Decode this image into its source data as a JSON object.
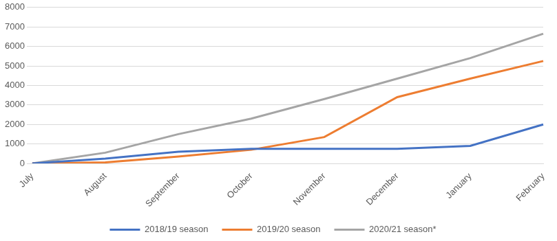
{
  "chart_data": {
    "type": "line",
    "categories": [
      "July",
      "August",
      "September",
      "October",
      "November",
      "December",
      "January",
      "February"
    ],
    "series": [
      {
        "name": "2018/19 season",
        "color": "#4472c4",
        "values": [
          0,
          250,
          600,
          750,
          750,
          750,
          900,
          2000
        ]
      },
      {
        "name": "2019/20 season",
        "color": "#ed7d31",
        "values": [
          0,
          50,
          350,
          700,
          1350,
          3400,
          4350,
          5250
        ]
      },
      {
        "name": "2020/21 season*",
        "color": "#a5a5a5",
        "values": [
          0,
          550,
          1500,
          2300,
          3300,
          4350,
          5400,
          6650
        ]
      }
    ],
    "ylim": [
      0,
      8000
    ],
    "yticks": [
      0,
      1000,
      2000,
      3000,
      4000,
      5000,
      6000,
      7000,
      8000
    ],
    "grid": true,
    "legend": "bottom"
  }
}
